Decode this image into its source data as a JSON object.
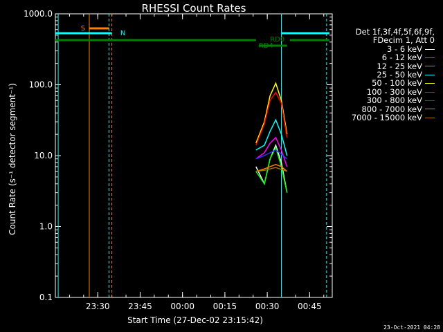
{
  "chart_data": {
    "type": "line",
    "title": "RHESSI Count Rates",
    "xlabel": "Start Time (27-Dec-02 23:15:42)",
    "ylabel": "Count Rate (s⁻¹ detector segment⁻¹)",
    "y_scale": "log",
    "ylim": [
      0.1,
      1000.0
    ],
    "xlim": [
      "23:15",
      "00:53"
    ],
    "x_ticks": [
      "23:30",
      "23:45",
      "00:00",
      "00:15",
      "00:30",
      "00:45"
    ],
    "y_ticks": [
      "0.1",
      "1.0",
      "10.0",
      "100.0",
      "1000.0"
    ],
    "grid": false,
    "legend": {
      "placement": "right",
      "header": [
        "Det 1f,3f,4f,5f,6f,9f,",
        "FDecim 1, Att 0"
      ]
    },
    "series": [
      {
        "name": "3 - 6 keV",
        "color": "#ffffff",
        "x": [
          "00:26",
          "00:29",
          "00:31",
          "00:33",
          "00:35",
          "00:37"
        ],
        "y": [
          7.0,
          4.0,
          9.0,
          14.0,
          8.0,
          3.0
        ]
      },
      {
        "name": "6 - 12 keV",
        "color": "#ff00ff",
        "x": [
          "00:26",
          "00:29",
          "00:31",
          "00:33",
          "00:35",
          "00:37"
        ],
        "y": [
          9.0,
          11.0,
          15.0,
          18.0,
          12.0,
          7.0
        ]
      },
      {
        "name": "12 - 25 keV",
        "color": "#00ff00",
        "x": [
          "00:26",
          "00:29",
          "00:31",
          "00:33",
          "00:35",
          "00:37"
        ],
        "y": [
          6.0,
          4.0,
          9.0,
          13.0,
          7.0,
          3.0
        ]
      },
      {
        "name": "25 - 50 keV",
        "color": "#00ffff",
        "x": [
          "00:26",
          "00:29",
          "00:31",
          "00:33",
          "00:35",
          "00:37"
        ],
        "y": [
          12.0,
          14.0,
          22.0,
          32.0,
          20.0,
          10.0
        ]
      },
      {
        "name": "50 - 100 keV",
        "color": "#ffff00",
        "x": [
          "00:26",
          "00:29",
          "00:31",
          "00:33",
          "00:35",
          "00:37"
        ],
        "y": [
          15.0,
          30.0,
          70.0,
          105.0,
          60.0,
          20.0
        ]
      },
      {
        "name": "100 - 300 keV",
        "color": "#ff0000",
        "x": [
          "00:26",
          "00:29",
          "00:31",
          "00:33",
          "00:35",
          "00:37"
        ],
        "y": [
          14.0,
          28.0,
          60.0,
          78.0,
          55.0,
          18.0
        ]
      },
      {
        "name": "300 - 800 keV",
        "color": "#3030ff",
        "x": [
          "00:26",
          "00:29",
          "00:31",
          "00:33",
          "00:35",
          "00:37"
        ],
        "y": [
          9.0,
          10.0,
          11.0,
          12.0,
          10.5,
          9.0
        ]
      },
      {
        "name": "800 - 7000 keV",
        "color": "#ff8000",
        "x": [
          "00:26",
          "00:29",
          "00:31",
          "00:33",
          "00:35",
          "00:37"
        ],
        "y": [
          6.0,
          6.5,
          7.0,
          7.5,
          7.0,
          6.0
        ]
      },
      {
        "name": "7000 - 15000 keV",
        "color": "#a07000",
        "x": [
          "00:26",
          "00:29",
          "00:31",
          "00:33",
          "00:35",
          "00:37"
        ],
        "y": [
          6.0,
          6.2,
          6.5,
          6.8,
          6.4,
          6.0
        ]
      }
    ],
    "annotations": {
      "orange_flag": "S",
      "cyan_flag": "N",
      "green_flag_top": "RD0",
      "green_flag_bottom": "RD4"
    }
  },
  "footer": {
    "timestamp": "23-Oct-2021 04:28"
  }
}
